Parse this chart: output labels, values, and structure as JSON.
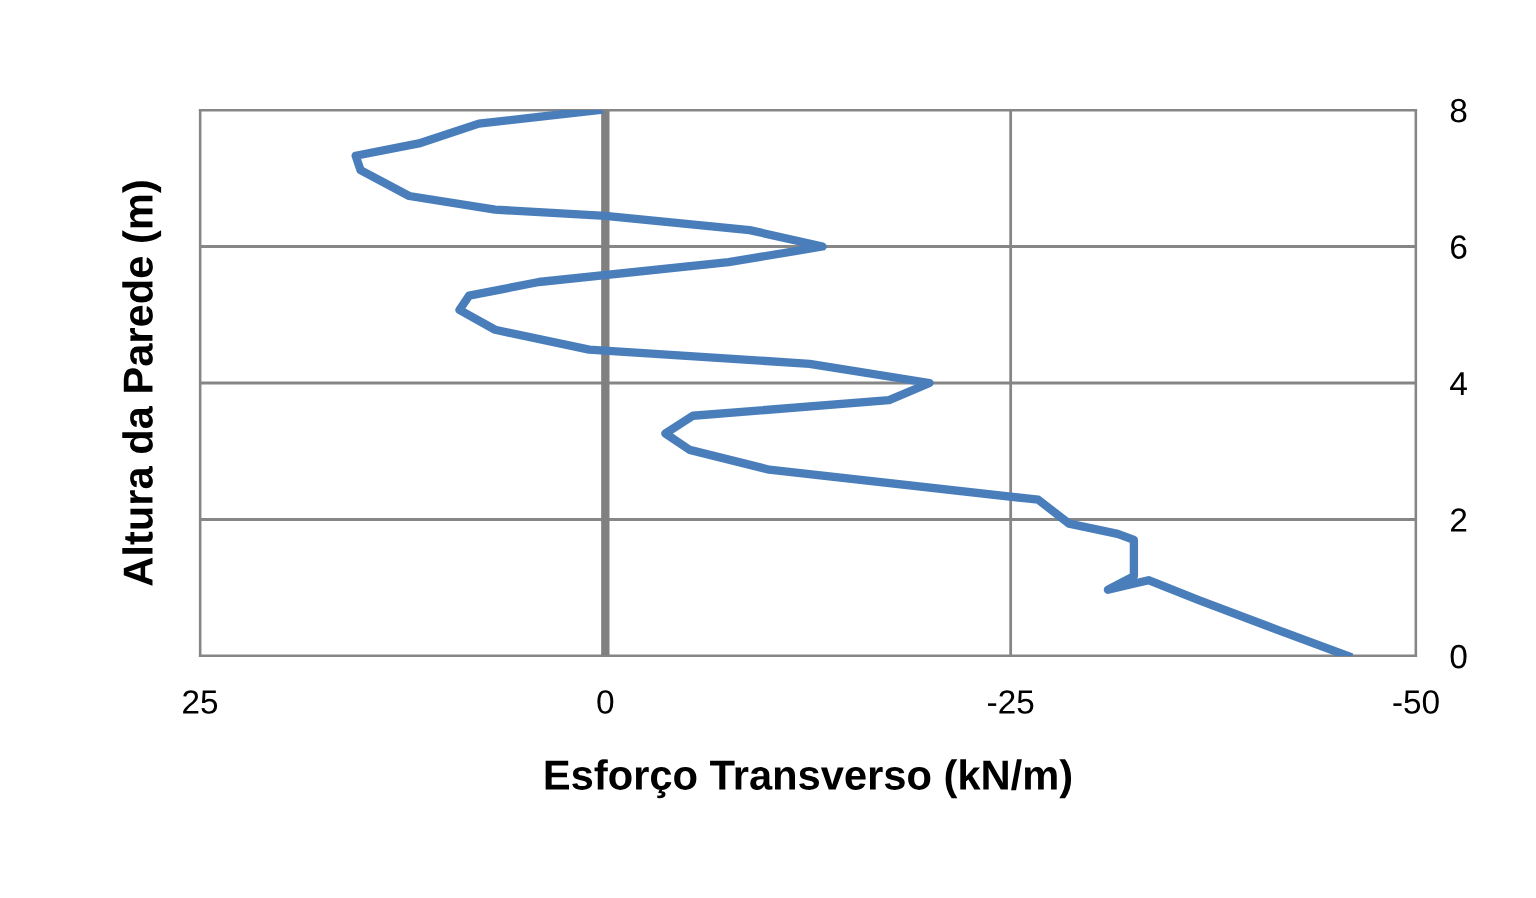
{
  "chart_data": {
    "type": "line",
    "xlabel": "Esforço Transverso (kN/m)",
    "ylabel": "Altura da Parede (m)",
    "xlim": [
      25,
      -50
    ],
    "xticks": [
      25,
      0,
      -25,
      -50
    ],
    "ylim": [
      0,
      8
    ],
    "yticks": [
      0,
      2,
      4,
      6,
      8
    ],
    "grid": true,
    "marker": "none",
    "line_style": "solid",
    "ref_lines": [
      {
        "axis": "x",
        "value": 0,
        "color": "#808080"
      }
    ],
    "series": [
      {
        "color": "#4a7ebb",
        "x": [
          -45.8,
          -41.5,
          -36.6,
          -33.5,
          -31,
          -32.6,
          -32.6,
          -31.6,
          -28.6,
          -26.7,
          -10.1,
          -5.2,
          -3.7,
          -5.4,
          -17.5,
          -20,
          -12.6,
          1,
          6.8,
          9,
          8.4,
          4.1,
          -7.6,
          -13.4,
          -8.9,
          0,
          6.8,
          12.1,
          15.1,
          15.4,
          11.5,
          7.8,
          0.4
        ],
        "values": [
          0,
          0.38,
          0.82,
          1.11,
          0.97,
          1.17,
          1.7,
          1.79,
          1.94,
          2.29,
          2.73,
          3.02,
          3.26,
          3.52,
          3.75,
          4.0,
          4.28,
          4.49,
          4.78,
          5.07,
          5.28,
          5.48,
          5.77,
          6.0,
          6.24,
          6.45,
          6.54,
          6.74,
          7.12,
          7.33,
          7.51,
          7.8,
          8.0
        ]
      }
    ]
  }
}
